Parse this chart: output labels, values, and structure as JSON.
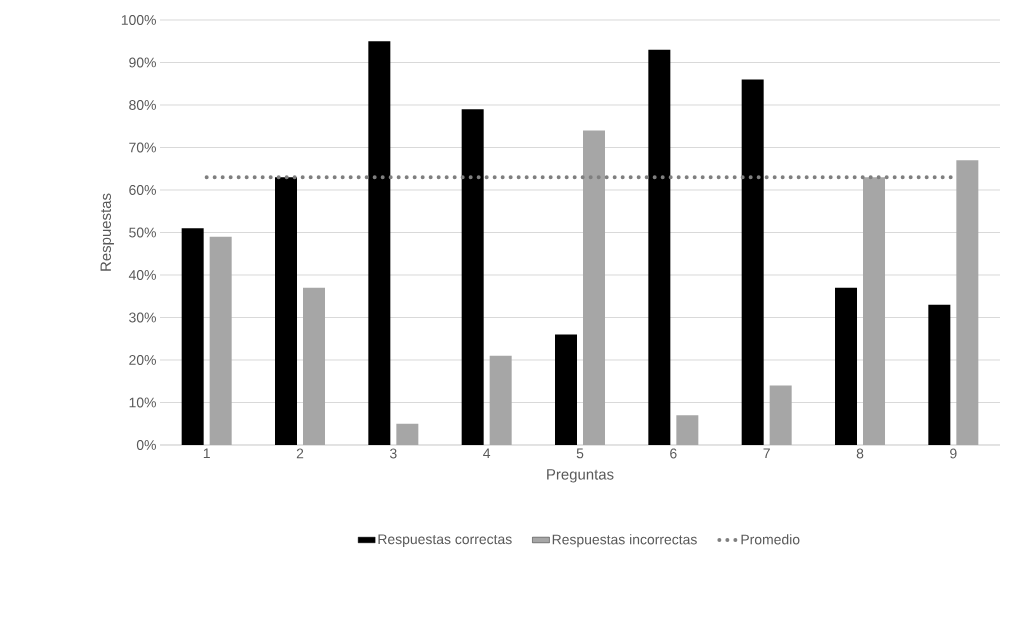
{
  "chart_data": {
    "type": "bar",
    "xlabel": "Preguntas",
    "ylabel": "Respuestas",
    "categories": [
      "1",
      "2",
      "3",
      "4",
      "5",
      "6",
      "7",
      "8",
      "9"
    ],
    "series": [
      {
        "name": "Respuestas correctas",
        "color": "#000000",
        "values": [
          51,
          63,
          95,
          79,
          26,
          93,
          86,
          37,
          33
        ]
      },
      {
        "name": "Respuestas incorrectas",
        "color": "#a6a6a6",
        "values": [
          49,
          37,
          5,
          21,
          74,
          7,
          14,
          63,
          67
        ]
      },
      {
        "name": "Promedio",
        "type": "line",
        "color": "#7f7f7f",
        "line_style": "dotted",
        "marker": "none",
        "values": [
          63,
          63,
          63,
          63,
          63,
          63,
          63,
          63,
          63
        ]
      }
    ],
    "ylim": [
      0,
      100
    ],
    "yticks": [
      {
        "value": 0,
        "label": "0%"
      },
      {
        "value": 10,
        "label": "10%"
      },
      {
        "value": 20,
        "label": "20%"
      },
      {
        "value": 30,
        "label": "30%"
      },
      {
        "value": 40,
        "label": "40%"
      },
      {
        "value": 50,
        "label": "50%"
      },
      {
        "value": 60,
        "label": "60%"
      },
      {
        "value": 70,
        "label": "70%"
      },
      {
        "value": 80,
        "label": "80%"
      },
      {
        "value": 90,
        "label": "90%"
      },
      {
        "value": 100,
        "label": "100%"
      }
    ],
    "grid": "y",
    "legend": "bottom"
  }
}
